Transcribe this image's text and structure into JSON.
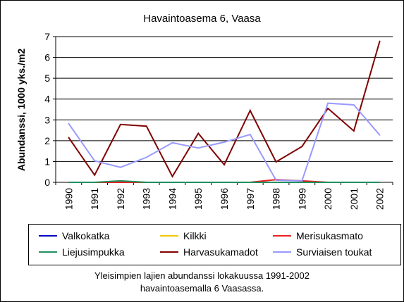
{
  "chart_data": {
    "type": "line",
    "title": "Havaintoasema 6, Vaasa",
    "xlabel": "",
    "ylabel": "Abundanssi, 1000 yks./m2",
    "categories": [
      "1990",
      "1991",
      "1992",
      "1993",
      "1994",
      "1995",
      "1996",
      "1997",
      "1998",
      "1999",
      "2000",
      "2001",
      "2002"
    ],
    "ylim": [
      0,
      7
    ],
    "yticks": [
      0,
      1,
      2,
      3,
      4,
      5,
      6,
      7
    ],
    "grid": true,
    "legend_position": "bottom",
    "series": [
      {
        "name": "Valkokatka",
        "color": "#0000c0",
        "values": [
          0,
          0,
          0,
          0,
          0,
          0,
          0,
          0,
          0,
          0,
          0,
          0,
          0
        ]
      },
      {
        "name": "Kilkki",
        "color": "#f0c800",
        "values": [
          0,
          0,
          0,
          0,
          0,
          0,
          0,
          0,
          0,
          0,
          0,
          0,
          0
        ]
      },
      {
        "name": "Merisukasmato",
        "color": "#e82020",
        "values": [
          0,
          0,
          0,
          0,
          0,
          0,
          0,
          0,
          0.13,
          0.07,
          0,
          0,
          0
        ]
      },
      {
        "name": "Liejusimpukka",
        "color": "#209060",
        "values": [
          0,
          0,
          0.07,
          0,
          0,
          0,
          0,
          0,
          0,
          0,
          0,
          0,
          0
        ]
      },
      {
        "name": "Harvasukamadot",
        "color": "#800000",
        "values": [
          2.15,
          0.35,
          2.78,
          2.7,
          0.28,
          2.35,
          0.85,
          3.45,
          0.98,
          1.72,
          3.55,
          2.47,
          6.78
        ]
      },
      {
        "name": "Surviaisen toukat",
        "color": "#9999ff",
        "values": [
          2.82,
          1.03,
          0.72,
          1.2,
          1.9,
          1.65,
          1.93,
          2.3,
          0.1,
          0.07,
          3.8,
          3.72,
          2.27
        ]
      }
    ]
  },
  "caption": {
    "line1": "Yleisimpien lajien abundanssi lokakuussa 1991-2002",
    "line2": "havaintoasemalla 6 Vaasassa."
  }
}
